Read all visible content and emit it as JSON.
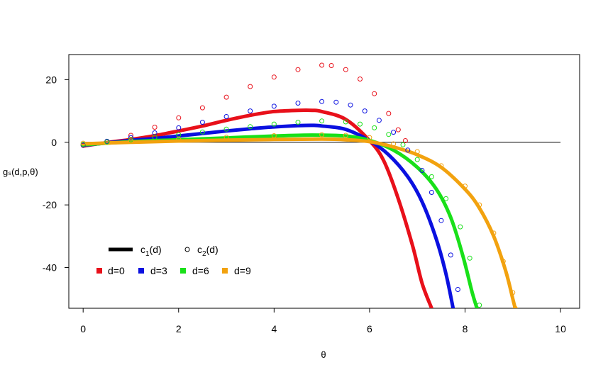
{
  "chart_data": {
    "type": "line",
    "title": "",
    "xlabel": "θ",
    "ylabel": "gₛ(d,p,θ)",
    "xlim": [
      -0.3,
      10.4
    ],
    "ylim": [
      -53,
      28
    ],
    "x_ticks": [
      0,
      2,
      4,
      6,
      8,
      10
    ],
    "y_ticks": [
      -40,
      -20,
      0,
      20
    ],
    "x_tick_labels": [
      "0",
      "2",
      "4",
      "6",
      "8",
      "10"
    ],
    "y_tick_labels": [
      "-40",
      "-20",
      "0",
      "20"
    ],
    "grid": false,
    "reference_line": {
      "y": 0,
      "x_from": 0,
      "x_to": 10
    },
    "legend": {
      "placement": "bottom-left",
      "line_style_entries": [
        {
          "marker": "thick-line",
          "label_main": "c",
          "label_sub": "1",
          "label_tail": "(d)"
        },
        {
          "marker": "open-circle",
          "label_main": "c",
          "label_sub": "2",
          "label_tail": "(d)"
        }
      ],
      "color_entries": [
        {
          "label": "d=0",
          "color": "#e8101a"
        },
        {
          "label": "d=3",
          "color": "#0a10e0"
        },
        {
          "label": "d=6",
          "color": "#19e019"
        },
        {
          "label": "d=9",
          "color": "#f2a20f"
        }
      ]
    },
    "series": [
      {
        "d": 0,
        "color": "#e8101a",
        "style": "line",
        "x": [
          0,
          0.5,
          1,
          1.5,
          2,
          2.5,
          3,
          3.5,
          4,
          4.5,
          4.8,
          5,
          5.5,
          6,
          6.3,
          6.6,
          6.9,
          7.1,
          7.3
        ],
        "y": [
          -1.2,
          -0.1,
          0.9,
          2.1,
          3.6,
          5.2,
          7,
          8.6,
          9.8,
          10.2,
          10.2,
          9.8,
          7.3,
          0.5,
          -6,
          -18,
          -33,
          -45,
          -53
        ]
      },
      {
        "d": 3,
        "color": "#0a10e0",
        "style": "line",
        "x": [
          0,
          0.5,
          1,
          1.5,
          2,
          2.5,
          3,
          3.5,
          4,
          4.5,
          4.8,
          5,
          5.5,
          6,
          6.4,
          6.8,
          7.1,
          7.4,
          7.6,
          7.75
        ],
        "y": [
          -1.0,
          -0.2,
          0.6,
          1.2,
          2.0,
          2.8,
          3.6,
          4.3,
          4.9,
          5.3,
          5.4,
          5.2,
          4.1,
          0.5,
          -4,
          -11,
          -19,
          -31,
          -42,
          -53
        ]
      },
      {
        "d": 6,
        "color": "#19e019",
        "style": "line",
        "x": [
          0,
          1,
          2,
          3,
          4,
          4.8,
          5.5,
          6,
          6.5,
          7,
          7.4,
          7.7,
          7.95,
          8.15,
          8.25
        ],
        "y": [
          -0.8,
          0.2,
          0.8,
          1.4,
          2.0,
          2.3,
          2.0,
          0.6,
          -2.5,
          -8,
          -15,
          -24,
          -36,
          -48,
          -53
        ]
      },
      {
        "d": 9,
        "color": "#f2a20f",
        "style": "line",
        "x": [
          0,
          1,
          2,
          3,
          4,
          5,
          5.5,
          6,
          6.5,
          7,
          7.5,
          8,
          8.3,
          8.6,
          8.85,
          9.0,
          9.05
        ],
        "y": [
          -0.5,
          0,
          0.4,
          0.7,
          0.9,
          1.0,
          0.8,
          0.2,
          -1.5,
          -4,
          -8,
          -15,
          -21,
          -30,
          -41,
          -50,
          -53
        ]
      },
      {
        "d": 0,
        "color": "#e8101a",
        "style": "points",
        "x": [
          0,
          0.5,
          1,
          1.5,
          2,
          2.5,
          3,
          3.5,
          4,
          4.5,
          5,
          5.2,
          5.5,
          5.8,
          6.1,
          6.4,
          6.6,
          6.75
        ],
        "y": [
          -1.0,
          0.3,
          2.2,
          4.8,
          7.8,
          11,
          14.4,
          17.8,
          20.8,
          23.2,
          24.6,
          24.5,
          23.2,
          20.2,
          15.5,
          9.2,
          4.0,
          0.5
        ]
      },
      {
        "d": 3,
        "color": "#0a10e0",
        "style": "points",
        "x": [
          0,
          0.5,
          1,
          1.5,
          2,
          2.5,
          3,
          3.5,
          4,
          4.5,
          5,
          5.3,
          5.6,
          5.9,
          6.2,
          6.5,
          6.8,
          7.1,
          7.3,
          7.5,
          7.7,
          7.85
        ],
        "y": [
          -0.9,
          0.3,
          1.5,
          3.0,
          4.6,
          6.4,
          8.2,
          10,
          11.5,
          12.5,
          13,
          12.8,
          11.9,
          10,
          7,
          3.2,
          -2.5,
          -9,
          -16,
          -25,
          -36,
          -47
        ]
      },
      {
        "d": 6,
        "color": "#19e019",
        "style": "points",
        "x": [
          0,
          0.5,
          1,
          1.5,
          2,
          2.5,
          3,
          3.5,
          4,
          4.5,
          5,
          5.5,
          5.8,
          6.1,
          6.4,
          6.7,
          7,
          7.3,
          7.6,
          7.9,
          8.1,
          8.3
        ],
        "y": [
          -0.7,
          0.1,
          0.8,
          1.6,
          2.4,
          3.3,
          4.2,
          5,
          5.8,
          6.4,
          6.8,
          6.5,
          5.8,
          4.6,
          2.5,
          -0.8,
          -5.5,
          -11,
          -18,
          -27,
          -37,
          -52
        ]
      },
      {
        "d": 9,
        "color": "#f2a20f",
        "style": "points",
        "x": [
          0,
          1,
          2,
          3,
          4,
          5,
          5.5,
          6,
          6.5,
          7,
          7.5,
          8,
          8.3,
          8.6,
          8.8,
          9.0,
          9.05
        ],
        "y": [
          -0.3,
          0.4,
          1.0,
          1.6,
          2.1,
          2.4,
          2.2,
          1.5,
          -0.5,
          -3,
          -7.5,
          -14,
          -20,
          -29,
          -38,
          -48,
          -53
        ]
      }
    ]
  }
}
